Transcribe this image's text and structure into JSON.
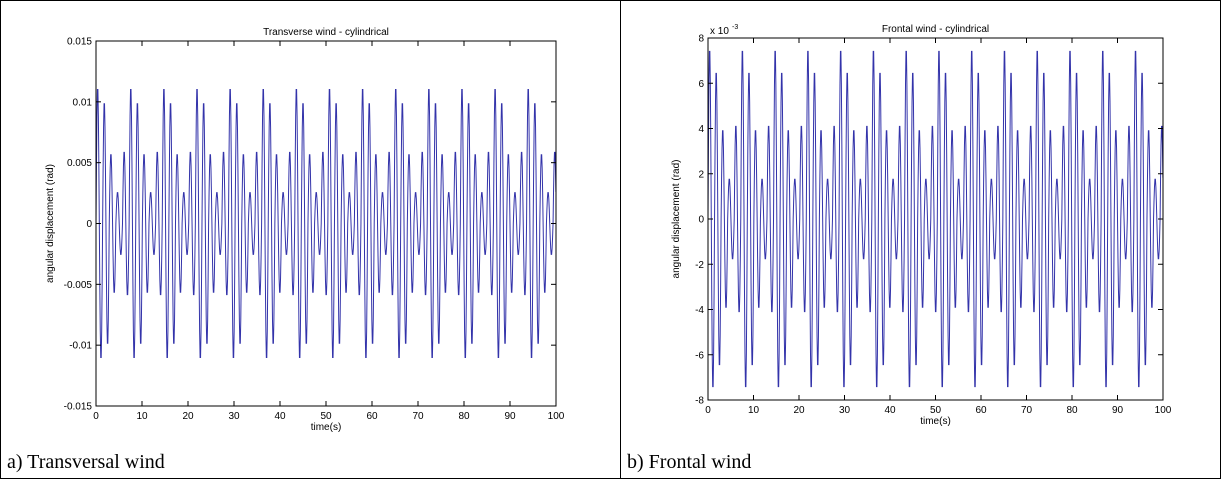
{
  "chart_data": [
    {
      "type": "line",
      "title": "Transverse wind - cylindrical",
      "xlabel": "time(s)",
      "ylabel": "angular displacement (rad)",
      "xlim": [
        0,
        100
      ],
      "ylim": [
        -0.015,
        0.015
      ],
      "x_ticks": [
        0,
        10,
        20,
        30,
        40,
        50,
        60,
        70,
        80,
        90,
        100
      ],
      "x_tick_labels": [
        "0",
        "10",
        "20",
        "30",
        "40",
        "50",
        "60",
        "70",
        "80",
        "90",
        "100"
      ],
      "y_ticks": [
        -0.015,
        -0.01,
        -0.005,
        0,
        0.005,
        0.01,
        0.015
      ],
      "y_tick_labels": [
        "-0.015",
        "-0.01",
        "-0.005",
        "0",
        "0.005",
        "0.01",
        "0.015"
      ],
      "y_exponent_label": "",
      "grid": false,
      "line_color": "#3333aa",
      "signal": {
        "period_s": 1.44,
        "peak_cycle": [
          0.0113,
          0.0101,
          0.0058,
          0.0026,
          0.006
        ],
        "trough_cycle": [
          -0.0113,
          -0.0101,
          -0.0058,
          -0.0026,
          -0.006
        ]
      },
      "caption": "a) Transversal wind"
    },
    {
      "type": "line",
      "title": "Frontal wind - cylindrical",
      "xlabel": "time(s)",
      "ylabel": "angular displacement (rad)",
      "xlim": [
        0,
        100
      ],
      "ylim": [
        -8,
        8
      ],
      "x_ticks": [
        0,
        10,
        20,
        30,
        40,
        50,
        60,
        70,
        80,
        90,
        100
      ],
      "x_tick_labels": [
        "0",
        "10",
        "20",
        "30",
        "40",
        "50",
        "60",
        "70",
        "80",
        "90",
        "100"
      ],
      "y_ticks": [
        -8,
        -6,
        -4,
        -2,
        0,
        2,
        4,
        6,
        8
      ],
      "y_tick_labels": [
        "-8",
        "-6",
        "-4",
        "-2",
        "0",
        "2",
        "4",
        "6",
        "8"
      ],
      "y_exponent_label": "x 10",
      "y_exponent_power": "-3",
      "grid": false,
      "line_color": "#3333aa",
      "signal": {
        "period_s": 1.44,
        "peak_cycle": [
          7.6,
          6.6,
          4.0,
          1.8,
          4.2
        ],
        "trough_cycle": [
          -7.6,
          -6.6,
          -4.0,
          -1.8,
          -4.2
        ]
      },
      "caption": "b) Frontal wind"
    }
  ]
}
